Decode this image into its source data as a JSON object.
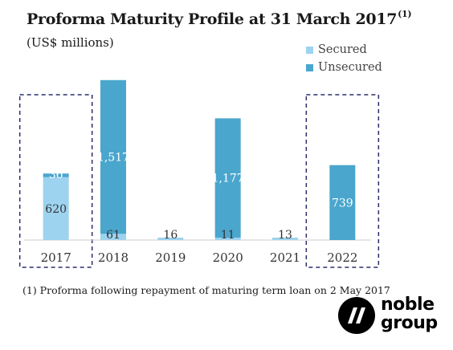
{
  "title": "Proforma Maturity Profile at 31 March 2017",
  "title_note": "(1)",
  "units": "(US$ millions)",
  "footnote": "(1) Proforma following repayment of maturing term loan on 2 May 2017",
  "logo": {
    "line1": "noble",
    "line2": "group",
    "icon": "noble-n-logo-icon"
  },
  "colors": {
    "secured": "#9dd3ef",
    "unsecured": "#4aa6cd",
    "highlight_box": "#2b2e6e",
    "axis": "#cccccc"
  },
  "chart_data": {
    "type": "bar",
    "stacked": true,
    "categories": [
      "2017",
      "2018",
      "2019",
      "2020",
      "2021",
      "2022"
    ],
    "series": [
      {
        "name": "Secured",
        "values": [
          620,
          61,
          16,
          11,
          13,
          0
        ],
        "labels": [
          "620",
          "61",
          "16",
          "11",
          "13",
          ""
        ]
      },
      {
        "name": "Unsecured",
        "values": [
          36,
          1517,
          0,
          1177,
          0,
          739
        ],
        "labels": [
          "36",
          "1,517",
          "",
          "1,177",
          "",
          "739"
        ]
      }
    ],
    "title": "Proforma Maturity Profile at 31 March 2017",
    "ylabel": "",
    "ylim": [
      0,
      1600
    ],
    "legend": "top-right",
    "highlighted_categories": [
      "2017",
      "2022"
    ],
    "grid": false
  }
}
